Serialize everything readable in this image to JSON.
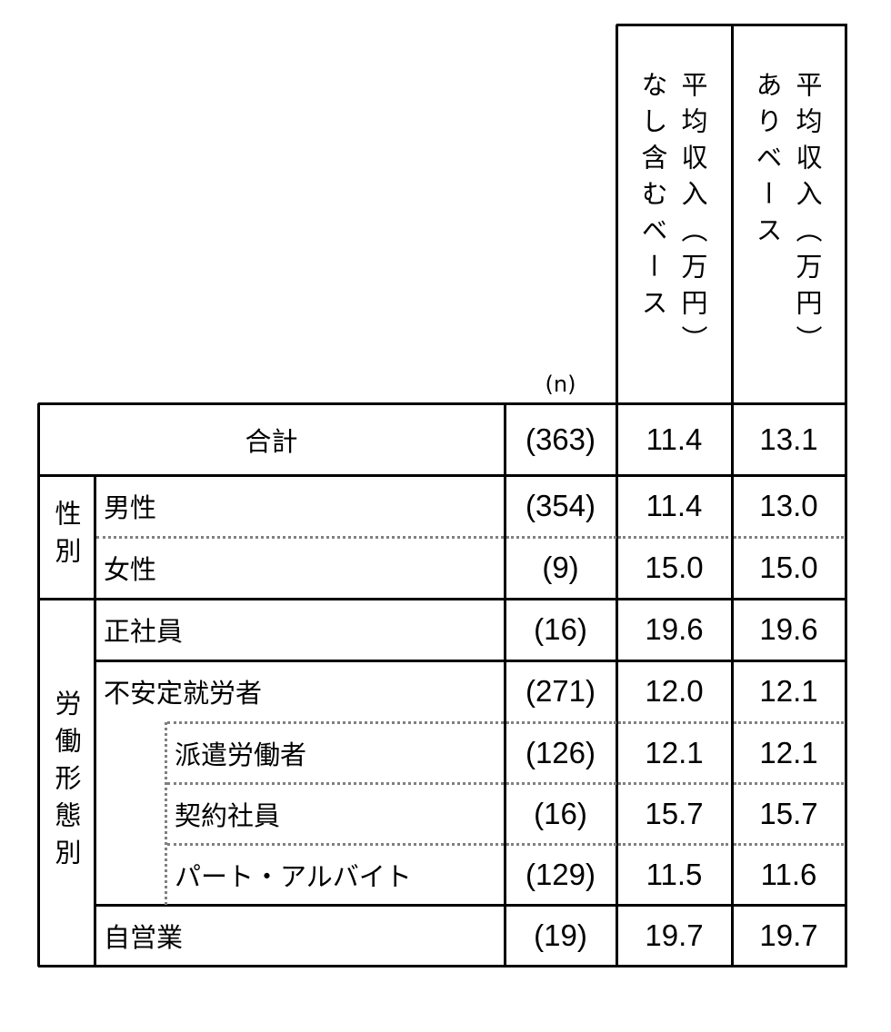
{
  "chart_data": {
    "type": "table",
    "n_label": "(n)",
    "columns": [
      "平均収入（万円）なし含むベース",
      "平均収入（万円）ありベース"
    ],
    "groups": [
      {
        "label": "性別"
      },
      {
        "label": "労働形態別"
      }
    ],
    "rows": [
      {
        "label": "合計",
        "n": "(363)",
        "values": [
          "11.4",
          "13.1"
        ]
      },
      {
        "label": "男性",
        "n": "(354)",
        "values": [
          "11.4",
          "13.0"
        ]
      },
      {
        "label": "女性",
        "n": "(9)",
        "values": [
          "15.0",
          "15.0"
        ]
      },
      {
        "label": "正社員",
        "n": "(16)",
        "values": [
          "19.6",
          "19.6"
        ]
      },
      {
        "label": "不安定就労者",
        "n": "(271)",
        "values": [
          "12.0",
          "12.1"
        ]
      },
      {
        "label": "派遣労働者",
        "n": "(126)",
        "values": [
          "12.1",
          "12.1"
        ]
      },
      {
        "label": "契約社員",
        "n": "(16)",
        "values": [
          "15.7",
          "15.7"
        ]
      },
      {
        "label": "パート・アルバイト",
        "n": "(129)",
        "values": [
          "11.5",
          "11.6"
        ]
      },
      {
        "label": "自営業",
        "n": "(19)",
        "values": [
          "19.7",
          "19.7"
        ]
      }
    ]
  }
}
